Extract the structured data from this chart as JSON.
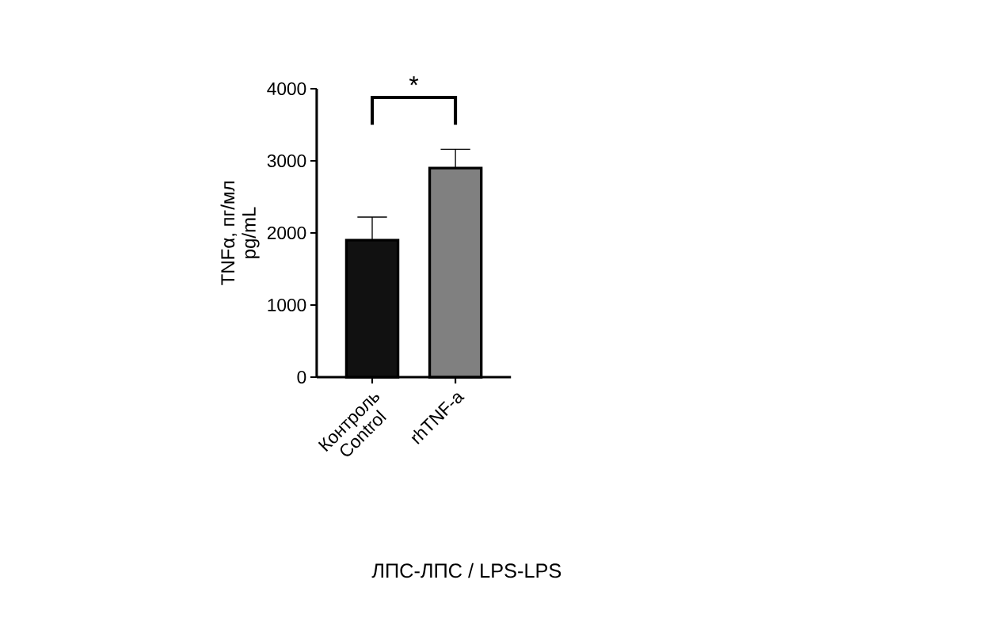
{
  "chart_data": {
    "type": "bar",
    "categories": [
      "Контроль\nControl",
      "rhTNF-a"
    ],
    "values": [
      1900,
      2900
    ],
    "colors": [
      "#111111",
      "#808080"
    ],
    "errors": [
      [
        1900,
        2220
      ],
      [
        2900,
        3160
      ]
    ],
    "ylim": [
      0,
      4000
    ],
    "yticks": [
      0,
      1000,
      2000,
      3000,
      4000
    ],
    "ylabel": "TNFα, пг/мл\npg/mL",
    "annotations": [
      "*",
      "ЛПС-ЛПС / LPS-LPS"
    ]
  }
}
